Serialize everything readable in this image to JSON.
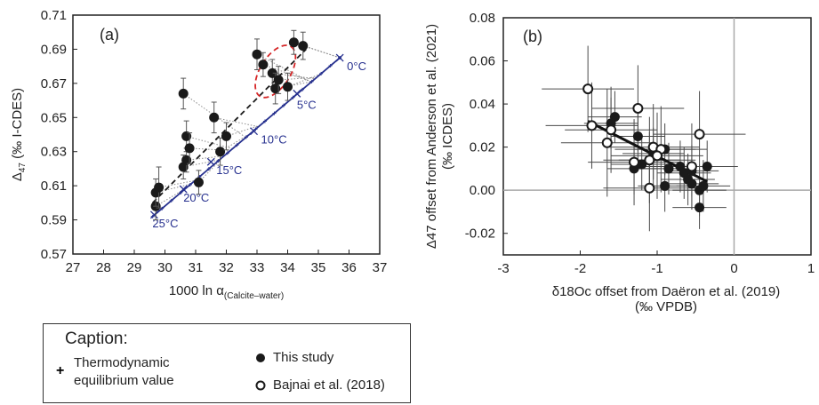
{
  "chart_data": [
    {
      "type": "scatter",
      "panel_label": "(a)",
      "xlabel_main": "1000 ln α",
      "xlabel_sub": "(Calcite–water)",
      "ylabel_main": "Δ",
      "ylabel_sub": "47",
      "ylabel_rest": " (‰ I-CDES)",
      "xlim": [
        27,
        37
      ],
      "ylim": [
        0.57,
        0.71
      ],
      "x_ticks": [
        "27",
        "28",
        "29",
        "30",
        "31",
        "32",
        "33",
        "34",
        "35",
        "36",
        "37"
      ],
      "y_ticks": [
        "0.57",
        "0.59",
        "0.61",
        "0.63",
        "0.65",
        "0.67",
        "0.69",
        "0.71"
      ],
      "measured": [
        {
          "x": 29.7,
          "y": 0.598,
          "err": 0.008
        },
        {
          "x": 29.7,
          "y": 0.606,
          "err": 0.008
        },
        {
          "x": 29.8,
          "y": 0.609,
          "err": 0.012
        },
        {
          "x": 30.6,
          "y": 0.664,
          "err": 0.009
        },
        {
          "x": 30.6,
          "y": 0.621,
          "err": 0.007
        },
        {
          "x": 30.7,
          "y": 0.625,
          "err": 0.007
        },
        {
          "x": 30.7,
          "y": 0.639,
          "err": 0.009
        },
        {
          "x": 30.8,
          "y": 0.632,
          "err": 0.009
        },
        {
          "x": 31.1,
          "y": 0.612,
          "err": 0.007
        },
        {
          "x": 31.6,
          "y": 0.65,
          "err": 0.009
        },
        {
          "x": 31.8,
          "y": 0.63,
          "err": 0.008
        },
        {
          "x": 32.0,
          "y": 0.639,
          "err": 0.008
        },
        {
          "x": 33.0,
          "y": 0.687,
          "err": 0.009
        },
        {
          "x": 33.2,
          "y": 0.681,
          "err": 0.007
        },
        {
          "x": 33.5,
          "y": 0.676,
          "err": 0.008
        },
        {
          "x": 33.6,
          "y": 0.667,
          "err": 0.009
        },
        {
          "x": 33.7,
          "y": 0.672,
          "err": 0.008
        },
        {
          "x": 34.0,
          "y": 0.668,
          "err": 0.008
        },
        {
          "x": 34.2,
          "y": 0.694,
          "err": 0.007
        },
        {
          "x": 34.5,
          "y": 0.692,
          "err": 0.008
        }
      ],
      "equilibrium_line": {
        "x": [
          29.6,
          35.7
        ],
        "y": [
          0.592,
          0.685
        ]
      },
      "dashed_line": {
        "x": [
          29.6,
          34.6
        ],
        "y": [
          0.6,
          0.69
        ]
      },
      "temperature_labels": [
        "0°C",
        "5°C",
        "10°C",
        "15°C",
        "20°C",
        "25°C"
      ],
      "temperature_points": [
        {
          "x": 35.7,
          "y": 0.685
        },
        {
          "x": 34.3,
          "y": 0.664
        },
        {
          "x": 32.9,
          "y": 0.642
        },
        {
          "x": 31.5,
          "y": 0.624
        },
        {
          "x": 30.6,
          "y": 0.608
        },
        {
          "x": 29.65,
          "y": 0.593
        }
      ],
      "colors": {
        "points": "#1a1a1a",
        "equilibrium": "#27318f",
        "dashed": "#1a1a1a",
        "ellipse": "#d62728",
        "connector": "#8c8c8c"
      }
    },
    {
      "type": "scatter",
      "panel_label": "(b)",
      "xlabel_line1": "δ18Oc offset from Daëron et al. (2019)",
      "xlabel_line2": "(‰ VPDB)",
      "ylabel_line1": "Δ47 offset from Anderson et al. (2021)",
      "ylabel_line2": "(‰ ICDES)",
      "xlim": [
        -3,
        1
      ],
      "ylim": [
        -0.03,
        0.08
      ],
      "x_ticks": [
        "-3",
        "-2",
        "-1",
        "0",
        "1"
      ],
      "y_ticks": [
        "-0.02",
        "0.00",
        "0.02",
        "0.04",
        "0.06",
        "0.08"
      ],
      "series": [
        {
          "name": "This study",
          "marker": "filled",
          "points": [
            {
              "x": -1.55,
              "y": 0.034,
              "ex": 0.35,
              "ey": 0.012
            },
            {
              "x": -1.6,
              "y": 0.031,
              "ex": 0.35,
              "ey": 0.012
            },
            {
              "x": -1.25,
              "y": 0.025,
              "ex": 0.35,
              "ey": 0.012
            },
            {
              "x": -1.1,
              "y": 0.014,
              "ex": 0.4,
              "ey": 0.013
            },
            {
              "x": -1.2,
              "y": 0.012,
              "ex": 0.4,
              "ey": 0.012
            },
            {
              "x": -1.05,
              "y": 0.017,
              "ex": 0.4,
              "ey": 0.012
            },
            {
              "x": -0.9,
              "y": 0.019,
              "ex": 0.4,
              "ey": 0.012
            },
            {
              "x": -0.85,
              "y": 0.01,
              "ex": 0.35,
              "ey": 0.012
            },
            {
              "x": -0.7,
              "y": 0.011,
              "ex": 0.35,
              "ey": 0.012
            },
            {
              "x": -0.65,
              "y": 0.008,
              "ex": 0.35,
              "ey": 0.012
            },
            {
              "x": -0.6,
              "y": 0.005,
              "ex": 0.35,
              "ey": 0.012
            },
            {
              "x": -0.55,
              "y": 0.003,
              "ex": 0.35,
              "ey": 0.012
            },
            {
              "x": -0.45,
              "y": 0.0,
              "ex": 0.35,
              "ey": 0.012
            },
            {
              "x": -0.45,
              "y": -0.008,
              "ex": 0.35,
              "ey": 0.01
            },
            {
              "x": -0.4,
              "y": 0.002,
              "ex": 0.35,
              "ey": 0.012
            },
            {
              "x": -0.35,
              "y": 0.011,
              "ex": 0.35,
              "ey": 0.012
            },
            {
              "x": -0.9,
              "y": 0.002,
              "ex": 0.35,
              "ey": 0.012
            },
            {
              "x": -1.3,
              "y": 0.01,
              "ex": 0.35,
              "ey": 0.012
            },
            {
              "x": -0.55,
              "y": 0.009,
              "ex": 0.35,
              "ey": 0.012
            }
          ]
        },
        {
          "name": "Bajnai et al. (2018)",
          "marker": "open",
          "points": [
            {
              "x": -1.9,
              "y": 0.047,
              "ex": 0.6,
              "ey": 0.02
            },
            {
              "x": -1.85,
              "y": 0.03,
              "ex": 0.6,
              "ey": 0.02
            },
            {
              "x": -1.65,
              "y": 0.022,
              "ex": 0.6,
              "ey": 0.025
            },
            {
              "x": -1.6,
              "y": 0.028,
              "ex": 0.6,
              "ey": 0.02
            },
            {
              "x": -1.25,
              "y": 0.038,
              "ex": 0.6,
              "ey": 0.02
            },
            {
              "x": -1.3,
              "y": 0.013,
              "ex": 0.6,
              "ey": 0.02
            },
            {
              "x": -1.1,
              "y": 0.014,
              "ex": 0.6,
              "ey": 0.02
            },
            {
              "x": -1.05,
              "y": 0.02,
              "ex": 0.6,
              "ey": 0.02
            },
            {
              "x": -0.95,
              "y": 0.019,
              "ex": 0.6,
              "ey": 0.02
            },
            {
              "x": -1.1,
              "y": 0.001,
              "ex": 0.6,
              "ey": 0.02
            },
            {
              "x": -0.55,
              "y": 0.011,
              "ex": 0.6,
              "ey": 0.02
            },
            {
              "x": -0.45,
              "y": 0.026,
              "ex": 0.6,
              "ey": 0.02
            },
            {
              "x": -1.0,
              "y": 0.016,
              "ex": 0.6,
              "ey": 0.02
            }
          ]
        }
      ],
      "trend_line": {
        "x": [
          -1.9,
          -0.35
        ],
        "y": [
          0.032,
          0.004
        ]
      },
      "colors": {
        "errorbar": "#4a4a4a",
        "zero_line": "#a9a9a9",
        "trend": "#111111"
      }
    }
  ],
  "caption": {
    "title": "Caption:",
    "items": [
      {
        "symbol": "+",
        "label": "Thermodynamic equilibrium value"
      },
      {
        "symbol": "filled-circle",
        "label": "This study"
      },
      {
        "symbol": "open-circle",
        "label": "Bajnai et al. (2018)"
      }
    ],
    "label_line1": "Thermodynamic",
    "label_line2": "equilibrium value"
  }
}
